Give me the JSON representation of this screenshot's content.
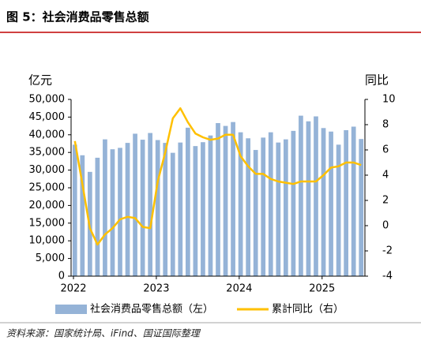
{
  "chart_data": {
    "type": "bar_line",
    "title": "图 5：社会消费品零售总额",
    "source": "资料来源：国家统计局、iFind、国证国际整理",
    "ylabel": "亿元",
    "y2label": "同比",
    "categories": [
      "2022",
      null,
      null,
      null,
      null,
      null,
      null,
      null,
      null,
      null,
      null,
      "2023",
      null,
      null,
      null,
      null,
      null,
      null,
      null,
      null,
      null,
      null,
      "2024",
      null,
      null,
      null,
      null,
      null,
      null,
      null,
      null,
      null,
      null,
      "2025",
      null,
      null,
      null,
      null,
      null
    ],
    "series": [
      {
        "name": "社会消费品零售总额（左）",
        "color": "#95b3d7",
        "kind": "bar",
        "values": [
          37200,
          34200,
          29500,
          33500,
          38700,
          35900,
          36300,
          37700,
          40300,
          38600,
          40500,
          38500,
          37700,
          34900,
          37800,
          42000,
          36800,
          37900,
          39800,
          43300,
          42500,
          43600,
          40700,
          39000,
          35700,
          39200,
          40700,
          37800,
          38700,
          41100,
          45400,
          43800,
          45200,
          41900,
          40900,
          37200,
          41300,
          42300,
          38800
        ]
      },
      {
        "name": "累計同比（右）",
        "color": "#ffc000",
        "kind": "line",
        "axis": "y2",
        "values": [
          6.7,
          3.3,
          -0.2,
          -1.5,
          -0.7,
          -0.2,
          0.5,
          0.7,
          0.6,
          -0.1,
          -0.2,
          3.5,
          5.8,
          8.5,
          9.3,
          8.2,
          7.3,
          7.0,
          6.8,
          6.9,
          7.2,
          7.2,
          5.5,
          4.7,
          4.1,
          4.1,
          3.7,
          3.5,
          3.4,
          3.3,
          3.5,
          3.5,
          3.5,
          4.0,
          4.6,
          4.7,
          5.0,
          5.0,
          4.8
        ]
      }
    ],
    "ylim": [
      0,
      50000
    ],
    "yticks": [
      {
        "value": 0,
        "label": "0"
      },
      {
        "value": 5000,
        "label": "5,000"
      },
      {
        "value": 10000,
        "label": "10,000"
      },
      {
        "value": 15000,
        "label": "15,000"
      },
      {
        "value": 20000,
        "label": "20,000"
      },
      {
        "value": 25000,
        "label": "25,000"
      },
      {
        "value": 30000,
        "label": "30,000"
      },
      {
        "value": 35000,
        "label": "35,000"
      },
      {
        "value": 40000,
        "label": "40,000"
      },
      {
        "value": 45000,
        "label": "45,000"
      },
      {
        "value": 50000,
        "label": "50,000"
      }
    ],
    "y2lim": [
      -4,
      10
    ],
    "y2ticks": [
      -4,
      -2,
      0,
      2,
      4,
      6,
      8,
      10
    ],
    "grid": false
  }
}
